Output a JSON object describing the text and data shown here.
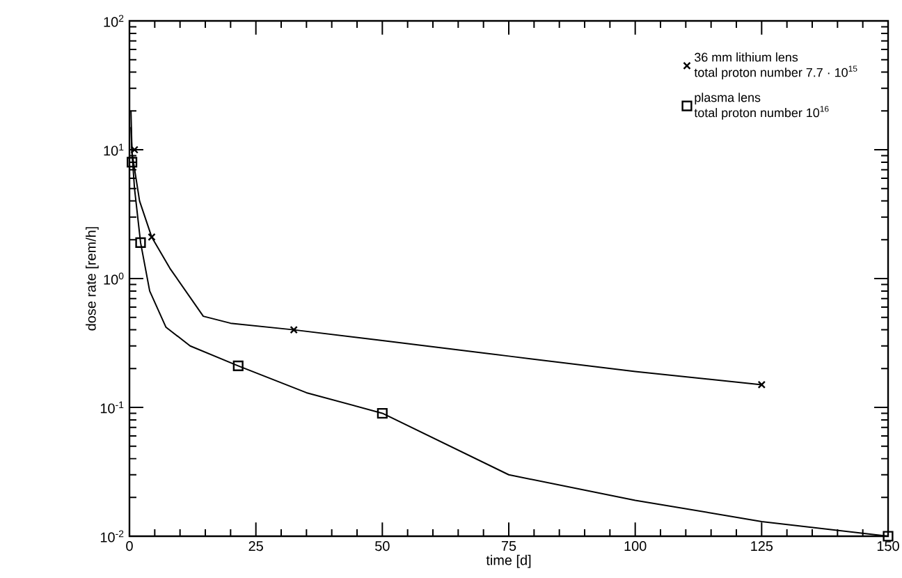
{
  "chart_data": {
    "type": "scatter",
    "xlabel": "time [d]",
    "ylabel": "dose rate [rem/h]",
    "log": "y",
    "xlim": [
      0,
      150
    ],
    "xticks": [
      0,
      25,
      50,
      75,
      100,
      125,
      150
    ],
    "ylim": [
      0.01,
      100
    ],
    "yticks": [
      {
        "value": 0.01,
        "label": "10$^{-2}$"
      },
      {
        "value": 0.1,
        "label": "10$^{-1}$"
      },
      {
        "value": 1,
        "label": "10$^{0}$"
      },
      {
        "value": 10,
        "label": "10$^{1}$"
      },
      {
        "value": 100,
        "label": "10$^{2}$"
      }
    ],
    "legend": "top right",
    "grid": false,
    "annotations": [
      "total proton number 7.7 · 10$^{15}$",
      "total proton number 10$^{16}$"
    ],
    "series": [
      {
        "name": "36 mm lithium lens",
        "marker": "cross",
        "color": "#000000",
        "x": [
          1,
          4.4,
          32.5,
          125
        ],
        "values": [
          10,
          2.1,
          0.4,
          0.15
        ]
      },
      {
        "name": "plasma lens",
        "marker": "square",
        "color": "#000000",
        "x": [
          0.5,
          2.2,
          21.5,
          50,
          150
        ],
        "values": [
          8,
          1.9,
          0.21,
          0.09,
          0.01
        ]
      },
      {
        "type": "line",
        "color": "#000000",
        "x": [
          0.3,
          0.5,
          2,
          4.4,
          8,
          14.6,
          20,
          32.5,
          50,
          75,
          100,
          125
        ],
        "values": [
          20,
          9.5,
          4,
          2.1,
          1.2,
          0.51,
          0.45,
          0.4,
          0.33,
          0.25,
          0.19,
          0.15
        ]
      },
      {
        "type": "line",
        "color": "#000000",
        "x": [
          0.3,
          0.5,
          1,
          2.2,
          4,
          7.2,
          12,
          21.5,
          35,
          50,
          75,
          100,
          125,
          150
        ],
        "values": [
          15,
          9.5,
          5,
          1.9,
          0.8,
          0.42,
          0.3,
          0.21,
          0.13,
          0.09,
          0.03,
          0.019,
          0.013,
          0.01
        ]
      }
    ]
  }
}
